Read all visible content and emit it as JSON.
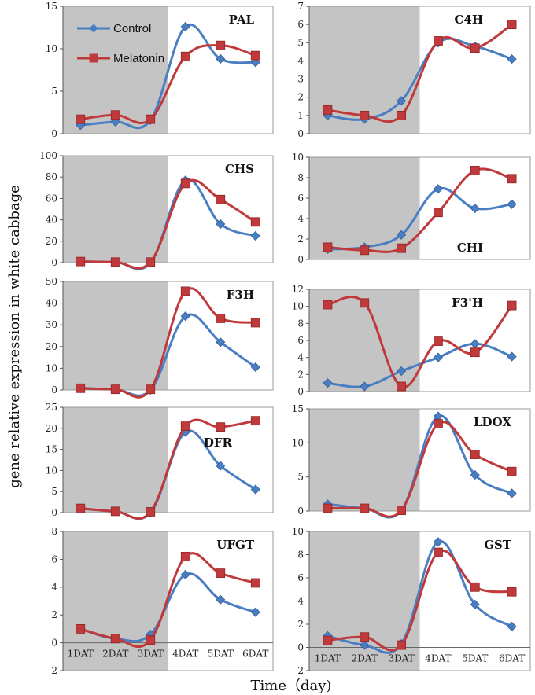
{
  "figure": {
    "ylabel": "gene relative expression in white cabbage",
    "xlabel": "Time（day)",
    "legend": [
      "Control",
      "Melatonin"
    ],
    "colors": {
      "control": "#4a7ec2",
      "melatonin": "#c0393b",
      "shade": "#c4c4c4"
    }
  },
  "chart_data": [
    {
      "type": "line",
      "title": "PAL",
      "title_pos": "top-right",
      "categories": [
        "1DAT",
        "2DAT",
        "3DAT",
        "4DAT",
        "5DAT",
        "6DAT"
      ],
      "ylim": [
        0,
        15
      ],
      "yticks": [
        0,
        5,
        10,
        15
      ],
      "series": [
        {
          "name": "Control",
          "values": [
            1.0,
            1.4,
            1.6,
            12.6,
            8.8,
            8.4
          ]
        },
        {
          "name": "Melatonin",
          "values": [
            1.7,
            2.2,
            1.7,
            9.1,
            10.4,
            9.2
          ]
        }
      ]
    },
    {
      "type": "line",
      "title": "C4H",
      "title_pos": "top-right",
      "categories": [
        "1DAT",
        "2DAT",
        "3DAT",
        "4DAT",
        "5DAT",
        "6DAT"
      ],
      "ylim": [
        0,
        7
      ],
      "yticks": [
        0,
        1,
        2,
        3,
        4,
        5,
        6,
        7
      ],
      "series": [
        {
          "name": "Control",
          "values": [
            1.0,
            0.8,
            1.8,
            5.0,
            4.8,
            4.1
          ]
        },
        {
          "name": "Melatonin",
          "values": [
            1.3,
            1.0,
            1.0,
            5.1,
            4.7,
            6.0
          ]
        }
      ]
    },
    {
      "type": "line",
      "title": "CHS",
      "title_pos": "top-right",
      "categories": [
        "1DAT",
        "2DAT",
        "3DAT",
        "4DAT",
        "5DAT",
        "6DAT"
      ],
      "ylim": [
        0,
        100
      ],
      "yticks": [
        0,
        20,
        40,
        60,
        80,
        100
      ],
      "series": [
        {
          "name": "Control",
          "values": [
            1,
            0.5,
            0,
            77,
            36,
            25
          ]
        },
        {
          "name": "Melatonin",
          "values": [
            1,
            0.5,
            0.5,
            74,
            59,
            38
          ]
        }
      ]
    },
    {
      "type": "line",
      "title": "CHI",
      "title_pos": "bottom-right",
      "categories": [
        "1DAT",
        "2DAT",
        "3DAT",
        "4DAT",
        "5DAT",
        "6DAT"
      ],
      "ylim": [
        0,
        10
      ],
      "yticks": [
        0,
        2,
        4,
        6,
        8,
        10
      ],
      "series": [
        {
          "name": "Control",
          "values": [
            1.0,
            1.2,
            2.4,
            6.9,
            5.0,
            5.4
          ]
        },
        {
          "name": "Melatonin",
          "values": [
            1.2,
            0.9,
            1.1,
            4.6,
            8.7,
            7.9
          ]
        }
      ]
    },
    {
      "type": "line",
      "title": "F3H",
      "title_pos": "top-right",
      "categories": [
        "1DAT",
        "2DAT",
        "3DAT",
        "4DAT",
        "5DAT",
        "6DAT"
      ],
      "ylim": [
        0,
        50
      ],
      "yticks": [
        0,
        10,
        20,
        30,
        40,
        50
      ],
      "series": [
        {
          "name": "Control",
          "values": [
            0.8,
            0.3,
            0,
            34,
            22,
            10.5
          ]
        },
        {
          "name": "Melatonin",
          "values": [
            0.8,
            0.3,
            0.3,
            45.5,
            33,
            31
          ]
        }
      ]
    },
    {
      "type": "line",
      "title": "F3'H",
      "title_pos": "top-right",
      "categories": [
        "1DAT",
        "2DAT",
        "3DAT",
        "4DAT",
        "5DAT",
        "6DAT"
      ],
      "ylim": [
        0,
        12
      ],
      "yticks": [
        0,
        2,
        4,
        6,
        8,
        10,
        12
      ],
      "series": [
        {
          "name": "Control",
          "values": [
            1.0,
            0.6,
            2.4,
            4.0,
            5.6,
            4.1
          ]
        },
        {
          "name": "Melatonin",
          "values": [
            10.2,
            10.4,
            0.6,
            5.9,
            4.6,
            10.1
          ]
        }
      ]
    },
    {
      "type": "line",
      "title": "DFR",
      "title_pos": "middle-right",
      "categories": [
        "1DAT",
        "2DAT",
        "3DAT",
        "4DAT",
        "5DAT",
        "6DAT"
      ],
      "ylim": [
        0,
        25
      ],
      "yticks": [
        0,
        5,
        10,
        15,
        20,
        25
      ],
      "series": [
        {
          "name": "Control",
          "values": [
            1.0,
            0.3,
            0,
            19.1,
            11.1,
            5.5
          ]
        },
        {
          "name": "Melatonin",
          "values": [
            1.0,
            0.3,
            0.2,
            20.5,
            20.3,
            21.8
          ]
        }
      ]
    },
    {
      "type": "line",
      "title": "LDOX",
      "title_pos": "top-right",
      "categories": [
        "1DAT",
        "2DAT",
        "3DAT",
        "4DAT",
        "5DAT",
        "6DAT"
      ],
      "ylim": [
        0,
        15
      ],
      "yticks": [
        0,
        5,
        10,
        15
      ],
      "series": [
        {
          "name": "Control",
          "values": [
            1.0,
            0.4,
            0.1,
            13.9,
            5.3,
            2.6
          ]
        },
        {
          "name": "Melatonin",
          "values": [
            0.4,
            0.4,
            0.1,
            12.8,
            8.3,
            5.8
          ]
        }
      ]
    },
    {
      "type": "line",
      "title": "UFGT",
      "title_pos": "top-right",
      "categories": [
        "1DAT",
        "2DAT",
        "3DAT",
        "4DAT",
        "5DAT",
        "6DAT"
      ],
      "ylim": [
        -2,
        8
      ],
      "yticks": [
        -2,
        0,
        2,
        4,
        6,
        8
      ],
      "series": [
        {
          "name": "Control",
          "values": [
            1.0,
            0.3,
            0.6,
            4.9,
            3.1,
            2.2
          ]
        },
        {
          "name": "Melatonin",
          "values": [
            1.0,
            0.3,
            0.2,
            6.2,
            5.0,
            4.3
          ]
        }
      ]
    },
    {
      "type": "line",
      "title": "GST",
      "title_pos": "top-right",
      "categories": [
        "1DAT",
        "2DAT",
        "3DAT",
        "4DAT",
        "5DAT",
        "6DAT"
      ],
      "ylim": [
        -2,
        10
      ],
      "yticks": [
        -2,
        0,
        2,
        4,
        6,
        8,
        10
      ],
      "series": [
        {
          "name": "Control",
          "values": [
            1.0,
            0.2,
            0.3,
            9.1,
            3.7,
            1.8
          ]
        },
        {
          "name": "Melatonin",
          "values": [
            0.6,
            0.9,
            0.2,
            8.2,
            5.2,
            4.8
          ]
        }
      ]
    }
  ]
}
